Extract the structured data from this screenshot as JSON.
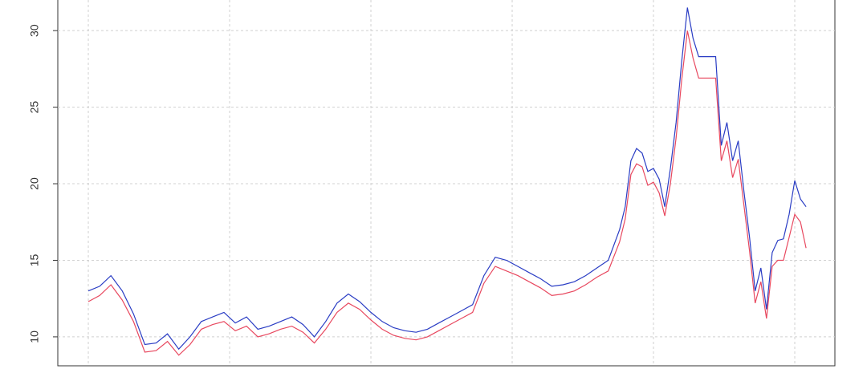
{
  "chart_data": {
    "type": "line",
    "x": [
      0,
      4,
      8,
      12,
      16,
      20,
      24,
      28,
      32,
      36,
      40,
      44,
      48,
      52,
      56,
      60,
      64,
      68,
      72,
      76,
      80,
      84,
      88,
      92,
      96,
      100,
      104,
      108,
      112,
      116,
      120,
      124,
      128,
      132,
      136,
      140,
      144,
      148,
      152,
      156,
      160,
      164,
      168,
      172,
      176,
      180,
      184,
      188,
      190,
      192,
      194,
      196,
      198,
      200,
      202,
      204,
      206,
      208,
      210,
      212,
      214,
      216,
      218,
      220,
      222,
      224,
      226,
      228,
      230,
      232,
      234,
      236,
      238,
      240,
      242,
      244,
      246,
      248,
      250,
      252,
      254
    ],
    "series": [
      {
        "color": "#2a3dc4",
        "values": [
          13.0,
          13.3,
          14.0,
          13.0,
          11.5,
          9.5,
          9.6,
          10.2,
          9.2,
          10.0,
          11.0,
          11.3,
          11.6,
          10.9,
          11.3,
          10.5,
          10.7,
          11.0,
          11.3,
          10.8,
          10.0,
          11.0,
          12.2,
          12.8,
          12.3,
          11.6,
          11.0,
          10.6,
          10.4,
          10.3,
          10.5,
          10.9,
          11.3,
          11.7,
          12.1,
          14.0,
          15.2,
          15.0,
          14.6,
          14.2,
          13.8,
          13.3,
          13.4,
          13.6,
          14.0,
          14.5,
          15.0,
          17.0,
          18.5,
          21.5,
          22.3,
          22.0,
          20.8,
          21.0,
          20.3,
          18.5,
          21.0,
          24.0,
          28.0,
          31.5,
          29.5,
          28.3,
          28.3,
          28.3,
          28.3,
          22.5,
          24.0,
          21.5,
          22.8,
          19.5,
          16.5,
          13.0,
          14.5,
          11.8,
          15.5,
          16.3,
          16.4,
          18.0,
          20.2,
          19.0,
          18.5
        ]
      },
      {
        "color": "#e8485f",
        "values": [
          12.3,
          12.7,
          13.4,
          12.4,
          11.0,
          9.0,
          9.1,
          9.7,
          8.8,
          9.5,
          10.5,
          10.8,
          11.0,
          10.4,
          10.7,
          10.0,
          10.2,
          10.5,
          10.7,
          10.3,
          9.6,
          10.5,
          11.6,
          12.2,
          11.8,
          11.1,
          10.5,
          10.1,
          9.9,
          9.8,
          10.0,
          10.4,
          10.8,
          11.2,
          11.6,
          13.5,
          14.6,
          14.3,
          14.0,
          13.6,
          13.2,
          12.7,
          12.8,
          13.0,
          13.4,
          13.9,
          14.3,
          16.2,
          17.7,
          20.6,
          21.3,
          21.1,
          19.9,
          20.1,
          19.4,
          17.9,
          20.0,
          23.0,
          26.8,
          30.0,
          28.2,
          26.9,
          26.9,
          26.9,
          26.9,
          21.5,
          22.8,
          20.4,
          21.6,
          18.6,
          15.6,
          12.2,
          13.6,
          11.2,
          14.6,
          15.0,
          15.0,
          16.5,
          18.0,
          17.5,
          15.8
        ]
      }
    ],
    "xlim": [
      -10.8,
      264.2
    ],
    "xticks": [
      0,
      50,
      100,
      150,
      200,
      250
    ],
    "ylim": [
      7.9,
      32
    ],
    "yticks": [
      10,
      15,
      20,
      25,
      30
    ],
    "grid": true
  }
}
